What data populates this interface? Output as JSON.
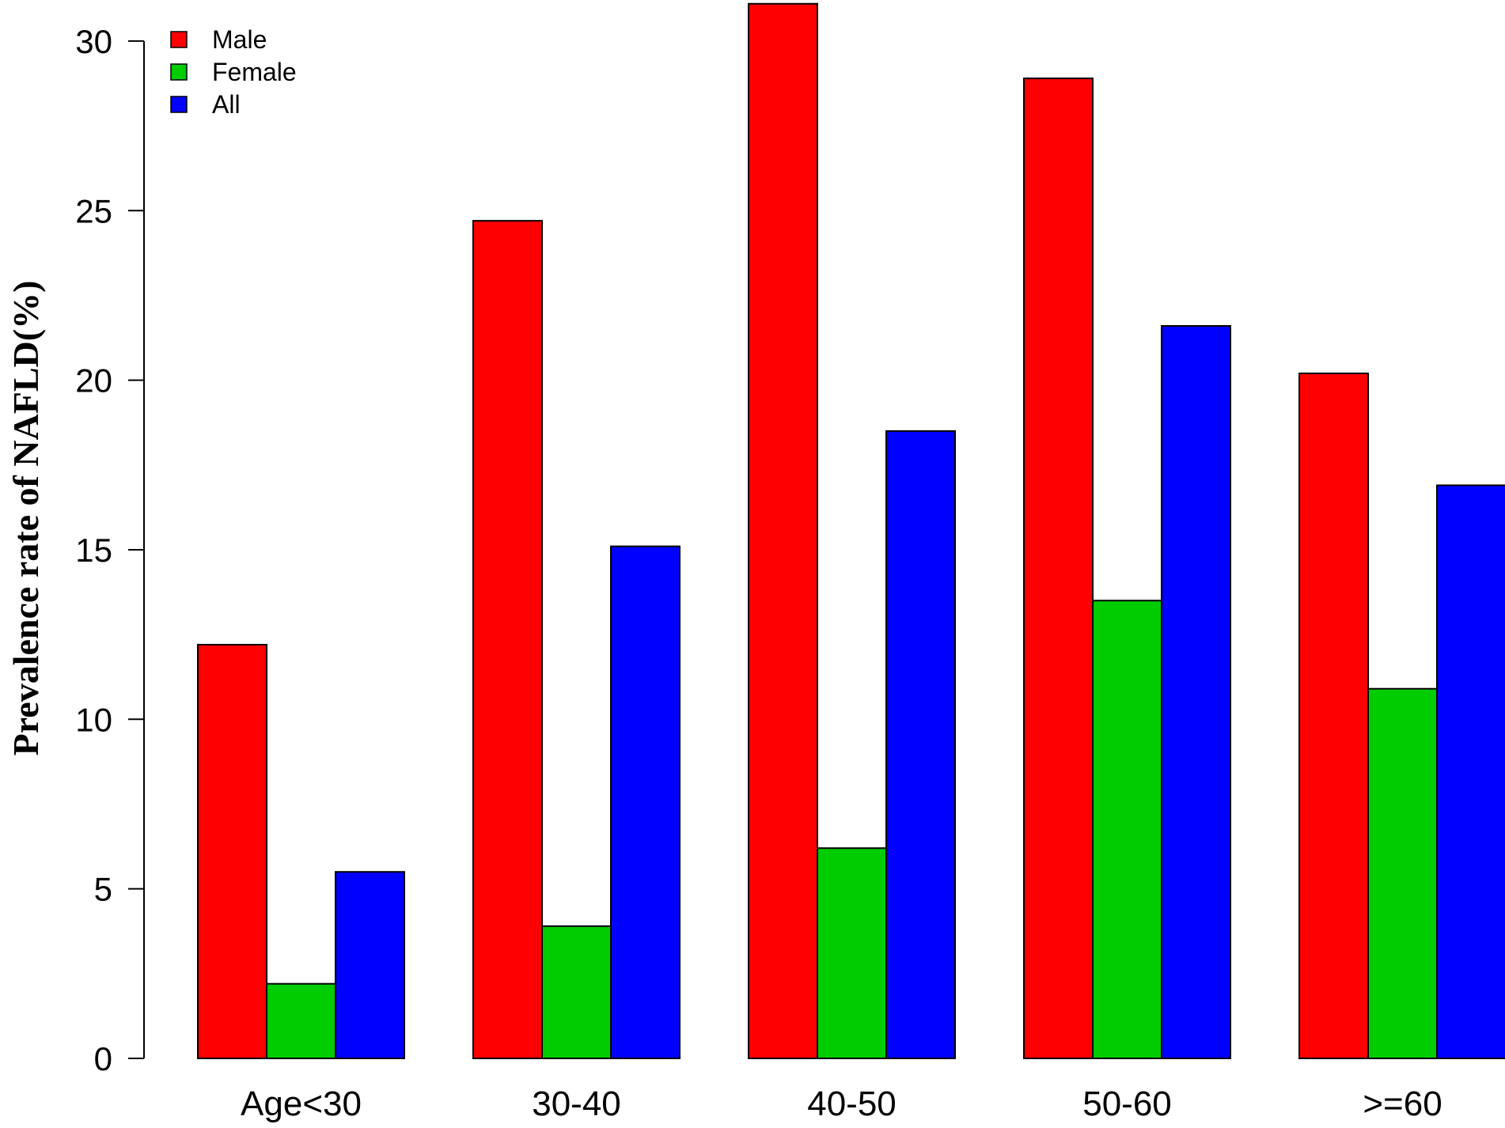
{
  "chart_data": {
    "type": "bar",
    "title": "",
    "xlabel": "",
    "ylabel": "Prevalence rate of NAFLD(%)",
    "categories": [
      "Age<30",
      "30-40",
      "40-50",
      "50-60",
      ">=60"
    ],
    "series": [
      {
        "name": "Male",
        "color": "#ff0000",
        "values": [
          12.2,
          24.7,
          31.1,
          28.9,
          20.2
        ]
      },
      {
        "name": "Female",
        "color": "#00cc00",
        "values": [
          2.2,
          3.9,
          6.2,
          13.5,
          10.9
        ]
      },
      {
        "name": "All",
        "color": "#0000ff",
        "values": [
          5.5,
          15.1,
          18.5,
          21.6,
          16.9
        ]
      }
    ],
    "yticks": [
      0,
      5,
      10,
      15,
      20,
      25,
      30
    ],
    "ylim": [
      0,
      31
    ],
    "grid": false,
    "legend_position": "top-left"
  }
}
